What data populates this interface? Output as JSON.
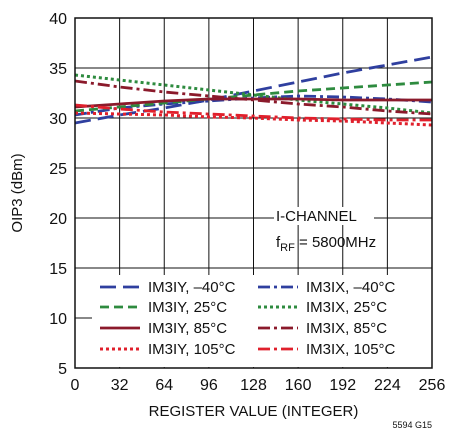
{
  "chart_data": {
    "type": "line",
    "xlabel": "REGISTER VALUE (INTEGER)",
    "ylabel": "OIP3 (dBm)",
    "xlim": [
      0,
      256
    ],
    "ylim": [
      5,
      40
    ],
    "xticks": [
      0,
      32,
      64,
      96,
      128,
      160,
      192,
      224,
      256
    ],
    "yticks": [
      5,
      10,
      15,
      20,
      25,
      30,
      35,
      40
    ],
    "grid": true,
    "annotation_line1": "I-CHANNEL",
    "annotation_fsub_prefix": "f",
    "annotation_fsub": "RF",
    "annotation_fvalue": " = 5800MHz",
    "figure_id": "5594 G15",
    "legend_placement": "bottom-left",
    "series": [
      {
        "name": "IM3IY, –40°C",
        "color": "#2f3f9f",
        "dash": "long-dash",
        "x": [
          0,
          32,
          64,
          96,
          128,
          160,
          192,
          224,
          256
        ],
        "y": [
          29.5,
          30.3,
          31.0,
          31.8,
          32.7,
          33.6,
          34.5,
          35.3,
          36.1
        ]
      },
      {
        "name": "IM3IX, –40°C",
        "color": "#2f3f9f",
        "dash": "dash-dot",
        "x": [
          0,
          32,
          64,
          96,
          128,
          160,
          192,
          224,
          256
        ],
        "y": [
          30.3,
          31.0,
          31.4,
          31.7,
          32.0,
          32.2,
          32.1,
          31.9,
          31.6
        ]
      },
      {
        "name": "IM3IY, 25°C",
        "color": "#2e8b3f",
        "dash": "dash",
        "x": [
          0,
          32,
          64,
          96,
          128,
          160,
          192,
          224,
          256
        ],
        "y": [
          30.7,
          31.1,
          31.5,
          31.9,
          32.3,
          32.7,
          33.0,
          33.3,
          33.6
        ]
      },
      {
        "name": "IM3IX, 25°C",
        "color": "#2e8b3f",
        "dash": "dot",
        "x": [
          0,
          32,
          64,
          96,
          128,
          160,
          192,
          224,
          256
        ],
        "y": [
          34.3,
          33.8,
          33.3,
          32.8,
          32.3,
          31.8,
          31.4,
          31.0,
          30.5
        ]
      },
      {
        "name": "IM3IY, 85°C",
        "color": "#8b1a2b",
        "dash": "solid",
        "x": [
          0,
          32,
          64,
          96,
          128,
          160,
          192,
          224,
          256
        ],
        "y": [
          31.1,
          31.4,
          31.7,
          31.9,
          31.9,
          31.9,
          31.8,
          31.8,
          31.8
        ]
      },
      {
        "name": "IM3IX, 85°C",
        "color": "#8b1a2b",
        "dash": "dash-dot",
        "x": [
          0,
          32,
          64,
          96,
          128,
          160,
          192,
          224,
          256
        ],
        "y": [
          33.7,
          33.1,
          32.6,
          32.2,
          31.8,
          31.4,
          31.1,
          30.7,
          30.4
        ]
      },
      {
        "name": "IM3IY, 105°C",
        "color": "#e0202c",
        "dash": "dot",
        "x": [
          0,
          32,
          64,
          96,
          128,
          160,
          192,
          224,
          256
        ],
        "y": [
          30.5,
          30.4,
          30.3,
          30.1,
          30.0,
          29.8,
          29.7,
          29.5,
          29.3
        ]
      },
      {
        "name": "IM3IX, 105°C",
        "color": "#e0202c",
        "dash": "dash-dot",
        "x": [
          0,
          32,
          64,
          96,
          128,
          160,
          192,
          224,
          256
        ],
        "y": [
          31.3,
          30.9,
          30.6,
          30.4,
          30.2,
          30.0,
          29.9,
          29.8,
          29.8
        ]
      }
    ]
  }
}
